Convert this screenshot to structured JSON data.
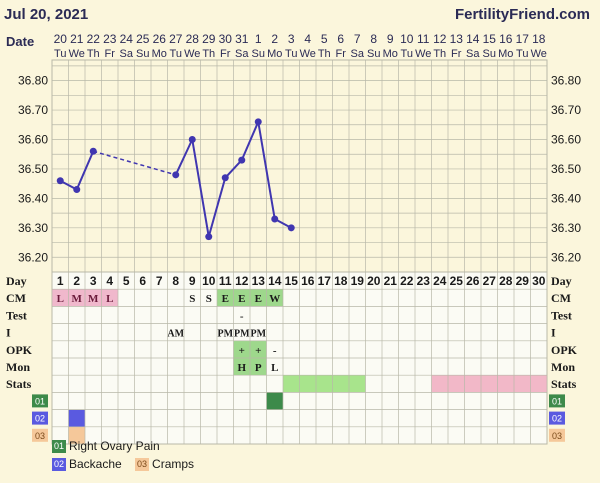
{
  "header": {
    "date": "Jul 20, 2021",
    "site": "FertilityFriend.com"
  },
  "chart_data": {
    "type": "line",
    "date_row_label": "Date",
    "dates": [
      "20",
      "21",
      "22",
      "23",
      "24",
      "25",
      "26",
      "27",
      "28",
      "29",
      "30",
      "31",
      "1",
      "2",
      "3",
      "4",
      "5",
      "6",
      "7",
      "8",
      "9",
      "10",
      "11",
      "12",
      "13",
      "14",
      "15",
      "16",
      "17",
      "18"
    ],
    "weekdays": [
      "Tu",
      "We",
      "Th",
      "Fr",
      "Sa",
      "Su",
      "Mo",
      "Tu",
      "We",
      "Th",
      "Fr",
      "Sa",
      "Su",
      "Mo",
      "Tu",
      "We",
      "Th",
      "Fr",
      "Sa",
      "Su",
      "Mo",
      "Tu",
      "We",
      "Th",
      "Fr",
      "Sa",
      "Su",
      "Mo",
      "Tu",
      "We"
    ],
    "yticks": [
      "36.80",
      "36.70",
      "36.60",
      "36.50",
      "36.40",
      "36.30",
      "36.20"
    ],
    "ylim": [
      36.15,
      36.87
    ],
    "temperatures": [
      36.46,
      36.43,
      36.56,
      null,
      null,
      null,
      null,
      36.48,
      36.6,
      36.27,
      36.47,
      36.53,
      36.66,
      36.33,
      36.3
    ],
    "row_labels": [
      "Day",
      "CM",
      "Test",
      "I",
      "OPK",
      "Mon",
      "Stats"
    ],
    "cycle_days": [
      "1",
      "2",
      "3",
      "4",
      "5",
      "6",
      "7",
      "8",
      "9",
      "10",
      "11",
      "12",
      "13",
      "14",
      "15",
      "16",
      "17",
      "18",
      "19",
      "20",
      "21",
      "22",
      "23",
      "24",
      "25",
      "26",
      "27",
      "28",
      "29",
      "30"
    ],
    "cm": [
      "L",
      "M",
      "M",
      "L",
      "",
      "",
      "",
      "",
      "S",
      "S",
      "E",
      "E",
      "E",
      "W"
    ],
    "test": [
      "",
      "",
      "",
      "",
      "",
      "",
      "",
      "",
      "",
      "",
      "",
      "-",
      "",
      ""
    ],
    "intercourse": [
      "",
      "",
      "",
      "",
      "",
      "",
      "",
      "AM",
      "",
      "",
      "PM",
      "PM",
      "PM",
      ""
    ],
    "opk": [
      "",
      "",
      "",
      "",
      "",
      "",
      "",
      "",
      "",
      "",
      "",
      "+",
      "+",
      "-"
    ],
    "monitor": [
      "",
      "",
      "",
      "",
      "",
      "",
      "",
      "",
      "",
      "",
      "",
      "H",
      "P",
      "L"
    ],
    "symptom_codes": [
      "01",
      "02",
      "03"
    ],
    "legend": [
      {
        "code": "01",
        "label": "Right Ovary Pain",
        "color": "#3d8a4a"
      },
      {
        "code": "02",
        "label": "Backache",
        "color": "#5a5ae0"
      },
      {
        "code": "03",
        "label": "Cramps",
        "color": "#f5c89a"
      }
    ],
    "colors": {
      "background": "#fbf6dc",
      "line": "#4036b0",
      "grid": "#b8b8a8",
      "cm_pink": "#f0b8cc",
      "cm_green": "#9ed88c",
      "stats_green": "#a8e48c",
      "stats_pink": "#f2b8c8",
      "sym01": "#3d8a4a",
      "sym02": "#5a5ae0",
      "sym03": "#f5c89a"
    }
  }
}
